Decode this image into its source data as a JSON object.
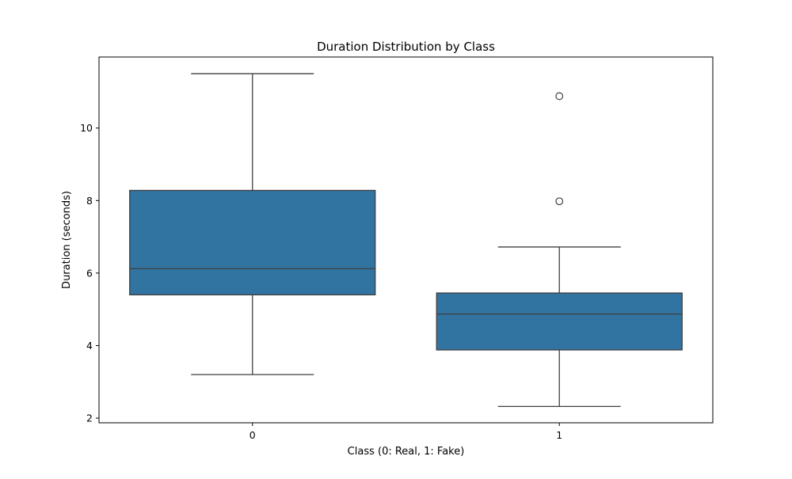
{
  "chart_data": {
    "type": "box",
    "title": "Duration Distribution by Class",
    "xlabel": "Class (0: Real, 1: Fake)",
    "ylabel": "Duration (seconds)",
    "categories": [
      "0",
      "1"
    ],
    "boxes": [
      {
        "category": "0",
        "whisker_low": 3.2,
        "q1": 5.4,
        "median": 6.12,
        "q3": 8.28,
        "whisker_high": 11.5,
        "outliers": []
      },
      {
        "category": "1",
        "whisker_low": 2.32,
        "q1": 3.88,
        "median": 4.87,
        "q3": 5.45,
        "whisker_high": 6.72,
        "outliers": [
          7.98,
          10.88
        ]
      }
    ],
    "ylim": [
      1.87,
      11.96
    ],
    "yticks": [
      2,
      4,
      6,
      8,
      10
    ],
    "box_color": "#3274a1",
    "line_color": "#3f3f3f",
    "grid": false
  }
}
